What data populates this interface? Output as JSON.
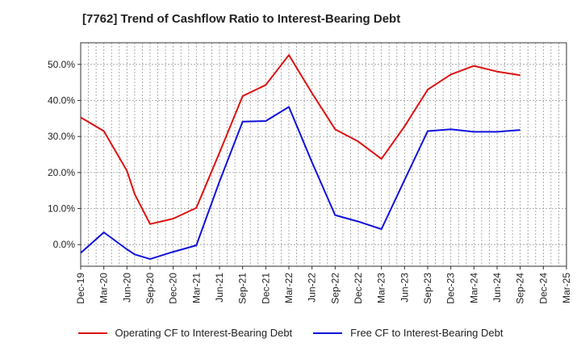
{
  "title": "[7762]  Trend of Cashflow Ratio to Interest-Bearing Debt",
  "chart_data": {
    "type": "line",
    "title": "[7762]  Trend of Cashflow Ratio to Interest-Bearing Debt",
    "xlabel": "",
    "ylabel": "",
    "x_tick_labels": [
      "Dec-19",
      "Mar-20",
      "Jun-20",
      "Sep-20",
      "Dec-20",
      "Mar-21",
      "Jun-21",
      "Sep-21",
      "Dec-21",
      "Mar-22",
      "Jun-22",
      "Sep-22",
      "Dec-22",
      "Mar-23",
      "Jun-23",
      "Sep-23",
      "Dec-23",
      "Mar-24",
      "Jun-24",
      "Sep-24",
      "Dec-24",
      "Mar-25"
    ],
    "y_tick_labels": [
      "0.0%",
      "10.0%",
      "20.0%",
      "30.0%",
      "40.0%",
      "50.0%"
    ],
    "ylim": [
      -6,
      56
    ],
    "grid": true,
    "legend_position": "bottom",
    "series": [
      {
        "name": "Operating CF to Interest-Bearing Debt",
        "color": "#dd1111",
        "points": [
          [
            "Dec-19",
            35.3
          ],
          [
            "Mar-20",
            31.5
          ],
          [
            "Jun-20",
            20.5
          ],
          [
            "Jul-20",
            14.0
          ],
          [
            "Sep-20",
            5.7
          ],
          [
            "Dec-20",
            7.2
          ],
          [
            "Mar-21",
            10.2
          ],
          [
            "Jun-21",
            25.5
          ],
          [
            "Sep-21",
            41.2
          ],
          [
            "Dec-21",
            44.3
          ],
          [
            "Mar-22",
            52.6
          ],
          [
            "Jun-22",
            42.0
          ],
          [
            "Sep-22",
            32.0
          ],
          [
            "Dec-22",
            28.6
          ],
          [
            "Mar-23",
            23.8
          ],
          [
            "Jun-23",
            32.8
          ],
          [
            "Sep-23",
            43.0
          ],
          [
            "Dec-23",
            47.2
          ],
          [
            "Mar-24",
            49.6
          ],
          [
            "Jun-24",
            48.0
          ],
          [
            "Sep-24",
            47.0
          ]
        ]
      },
      {
        "name": "Free CF to Interest-Bearing Debt",
        "color": "#1111dd",
        "points": [
          [
            "Dec-19",
            -2.3
          ],
          [
            "Mar-20",
            3.4
          ],
          [
            "Jun-20",
            -1.3
          ],
          [
            "Jul-20",
            -2.7
          ],
          [
            "Sep-20",
            -4.0
          ],
          [
            "Dec-20",
            -2.0
          ],
          [
            "Mar-21",
            -0.2
          ],
          [
            "Jun-21",
            17.5
          ],
          [
            "Sep-21",
            34.1
          ],
          [
            "Dec-21",
            34.3
          ],
          [
            "Mar-22",
            38.2
          ],
          [
            "Jun-22",
            22.8
          ],
          [
            "Sep-22",
            8.2
          ],
          [
            "Dec-22",
            6.4
          ],
          [
            "Mar-23",
            4.3
          ],
          [
            "Jun-23",
            17.9
          ],
          [
            "Sep-23",
            31.5
          ],
          [
            "Dec-23",
            32.0
          ],
          [
            "Mar-24",
            31.3
          ],
          [
            "Jun-24",
            31.3
          ],
          [
            "Sep-24",
            31.8
          ]
        ]
      }
    ]
  }
}
